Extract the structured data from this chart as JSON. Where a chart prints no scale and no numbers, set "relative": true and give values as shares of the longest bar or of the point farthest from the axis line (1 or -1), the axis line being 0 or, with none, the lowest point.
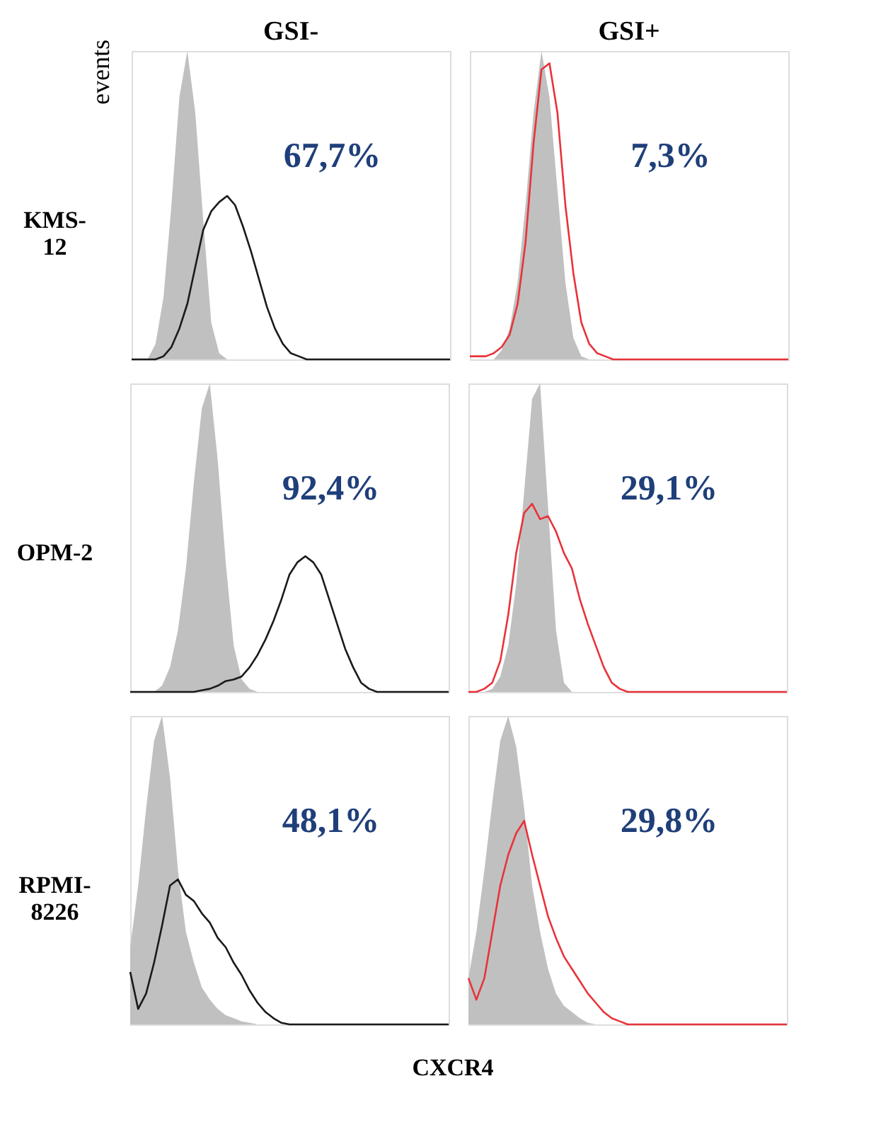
{
  "chart_data": [
    {
      "type": "area",
      "title": "GSI-",
      "ylabel": "KMS-12",
      "relative": true,
      "annotations": [
        "67,7%",
        "events"
      ],
      "categories": [
        null,
        null,
        null,
        null,
        null,
        null,
        null,
        null,
        null,
        null,
        null,
        null,
        null,
        null,
        null,
        null,
        null,
        null,
        null,
        null,
        null,
        null,
        null,
        null,
        null,
        null,
        null,
        null,
        null,
        null,
        null,
        null,
        null,
        null,
        null,
        null,
        null,
        null,
        null,
        null,
        null
      ],
      "series": [
        {
          "color": "#c0c0c0",
          "values": [
            0,
            0,
            0,
            0.05,
            0.2,
            0.5,
            0.85,
            1,
            0.8,
            0.45,
            0.12,
            0.02,
            0,
            0,
            0,
            0,
            0,
            0,
            0,
            0,
            0,
            0,
            0,
            0,
            0,
            0,
            0,
            0,
            0,
            0,
            0,
            0,
            0,
            0,
            0,
            0,
            0,
            0,
            0,
            0,
            0
          ]
        },
        {
          "type": "line",
          "color": "#1a1a1a",
          "values": [
            0,
            0,
            0,
            0,
            0.01,
            0.04,
            0.1,
            0.18,
            0.3,
            0.42,
            0.48,
            0.51,
            0.53,
            0.5,
            0.43,
            0.35,
            0.26,
            0.17,
            0.1,
            0.05,
            0.02,
            0.01,
            0,
            0,
            0,
            0,
            0,
            0,
            0,
            0,
            0,
            0,
            0,
            0,
            0,
            0,
            0,
            0,
            0,
            0,
            0
          ]
        }
      ]
    },
    {
      "type": "area",
      "title": "GSI+",
      "relative": true,
      "annotations": [
        "7,3%"
      ],
      "categories": [
        null,
        null,
        null,
        null,
        null,
        null,
        null,
        null,
        null,
        null,
        null,
        null,
        null,
        null,
        null,
        null,
        null,
        null,
        null,
        null,
        null,
        null,
        null,
        null,
        null,
        null,
        null,
        null,
        null,
        null,
        null,
        null,
        null,
        null,
        null,
        null,
        null,
        null,
        null,
        null,
        null
      ],
      "series": [
        {
          "color": "#c0c0c0",
          "values": [
            0,
            0,
            0,
            0,
            0.03,
            0.1,
            0.25,
            0.5,
            0.8,
            1,
            0.85,
            0.55,
            0.25,
            0.07,
            0.01,
            0,
            0,
            0,
            0,
            0,
            0,
            0,
            0,
            0,
            0,
            0,
            0,
            0,
            0,
            0,
            0,
            0,
            0,
            0,
            0,
            0,
            0,
            0,
            0,
            0,
            0
          ]
        },
        {
          "type": "line",
          "color": "#e8333a",
          "values": [
            0.01,
            0.01,
            0.01,
            0.02,
            0.04,
            0.08,
            0.18,
            0.38,
            0.7,
            0.94,
            0.96,
            0.8,
            0.5,
            0.28,
            0.12,
            0.05,
            0.02,
            0.01,
            0,
            0,
            0,
            0,
            0,
            0,
            0,
            0,
            0,
            0,
            0,
            0,
            0,
            0,
            0,
            0,
            0,
            0,
            0,
            0,
            0,
            0,
            0
          ]
        }
      ]
    },
    {
      "type": "area",
      "ylabel": "OPM-2",
      "relative": true,
      "annotations": [
        "92,4%"
      ],
      "categories": [
        null,
        null,
        null,
        null,
        null,
        null,
        null,
        null,
        null,
        null,
        null,
        null,
        null,
        null,
        null,
        null,
        null,
        null,
        null,
        null,
        null,
        null,
        null,
        null,
        null,
        null,
        null,
        null,
        null,
        null,
        null,
        null,
        null,
        null,
        null,
        null,
        null,
        null,
        null,
        null,
        null
      ],
      "series": [
        {
          "color": "#c0c0c0",
          "values": [
            0,
            0,
            0,
            0,
            0.02,
            0.08,
            0.2,
            0.4,
            0.68,
            0.92,
            1,
            0.75,
            0.42,
            0.15,
            0.04,
            0.01,
            0,
            0,
            0,
            0,
            0,
            0,
            0,
            0,
            0,
            0,
            0,
            0,
            0,
            0,
            0,
            0,
            0,
            0,
            0,
            0,
            0,
            0,
            0,
            0,
            0
          ]
        },
        {
          "type": "line",
          "color": "#1a1a1a",
          "values": [
            0,
            0,
            0,
            0,
            0,
            0,
            0,
            0,
            0,
            0.005,
            0.01,
            0.02,
            0.035,
            0.04,
            0.05,
            0.08,
            0.12,
            0.17,
            0.23,
            0.3,
            0.38,
            0.42,
            0.44,
            0.42,
            0.38,
            0.3,
            0.22,
            0.14,
            0.08,
            0.03,
            0.01,
            0,
            0,
            0,
            0,
            0,
            0,
            0,
            0,
            0,
            0
          ]
        }
      ]
    },
    {
      "type": "area",
      "relative": true,
      "annotations": [
        "29,1%"
      ],
      "categories": [
        null,
        null,
        null,
        null,
        null,
        null,
        null,
        null,
        null,
        null,
        null,
        null,
        null,
        null,
        null,
        null,
        null,
        null,
        null,
        null,
        null,
        null,
        null,
        null,
        null,
        null,
        null,
        null,
        null,
        null,
        null,
        null,
        null,
        null,
        null,
        null,
        null,
        null,
        null,
        null,
        null
      ],
      "series": [
        {
          "color": "#c0c0c0",
          "values": [
            0,
            0,
            0,
            0.01,
            0.05,
            0.15,
            0.35,
            0.65,
            0.95,
            1,
            0.6,
            0.2,
            0.03,
            0,
            0,
            0,
            0,
            0,
            0,
            0,
            0,
            0,
            0,
            0,
            0,
            0,
            0,
            0,
            0,
            0,
            0,
            0,
            0,
            0,
            0,
            0,
            0,
            0,
            0,
            0,
            0
          ]
        },
        {
          "type": "line",
          "color": "#e8333a",
          "values": [
            0,
            0,
            0.01,
            0.03,
            0.1,
            0.25,
            0.45,
            0.58,
            0.61,
            0.56,
            0.57,
            0.52,
            0.45,
            0.4,
            0.3,
            0.22,
            0.15,
            0.08,
            0.03,
            0.01,
            0,
            0,
            0,
            0,
            0,
            0,
            0,
            0,
            0,
            0,
            0,
            0,
            0,
            0,
            0,
            0,
            0,
            0,
            0,
            0,
            0
          ]
        }
      ]
    },
    {
      "type": "area",
      "ylabel": "RPMI-8226",
      "xlabel": "CXCR4",
      "relative": true,
      "annotations": [
        "48,1%"
      ],
      "categories": [
        null,
        null,
        null,
        null,
        null,
        null,
        null,
        null,
        null,
        null,
        null,
        null,
        null,
        null,
        null,
        null,
        null,
        null,
        null,
        null,
        null,
        null,
        null,
        null,
        null,
        null,
        null,
        null,
        null,
        null,
        null,
        null,
        null,
        null,
        null,
        null,
        null,
        null,
        null,
        null,
        null
      ],
      "series": [
        {
          "color": "#c0c0c0",
          "values": [
            0.25,
            0.45,
            0.7,
            0.92,
            1,
            0.8,
            0.5,
            0.3,
            0.2,
            0.12,
            0.08,
            0.05,
            0.03,
            0.02,
            0.01,
            0.005,
            0,
            0,
            0,
            0,
            0,
            0,
            0,
            0,
            0,
            0,
            0,
            0,
            0,
            0,
            0,
            0,
            0,
            0,
            0,
            0,
            0,
            0,
            0,
            0,
            0
          ]
        },
        {
          "type": "line",
          "color": "#1a1a1a",
          "values": [
            0.17,
            0.05,
            0.1,
            0.2,
            0.32,
            0.45,
            0.47,
            0.42,
            0.4,
            0.36,
            0.33,
            0.28,
            0.25,
            0.2,
            0.16,
            0.11,
            0.07,
            0.04,
            0.02,
            0.005,
            0,
            0,
            0,
            0,
            0,
            0,
            0,
            0,
            0,
            0,
            0,
            0,
            0,
            0,
            0,
            0,
            0,
            0,
            0,
            0,
            0
          ]
        }
      ]
    },
    {
      "type": "area",
      "relative": true,
      "annotations": [
        "29,8%"
      ],
      "categories": [
        null,
        null,
        null,
        null,
        null,
        null,
        null,
        null,
        null,
        null,
        null,
        null,
        null,
        null,
        null,
        null,
        null,
        null,
        null,
        null,
        null,
        null,
        null,
        null,
        null,
        null,
        null,
        null,
        null,
        null,
        null,
        null,
        null,
        null,
        null,
        null,
        null,
        null,
        null,
        null,
        null
      ],
      "series": [
        {
          "color": "#c0c0c0",
          "values": [
            0.15,
            0.3,
            0.5,
            0.72,
            0.92,
            1,
            0.9,
            0.7,
            0.45,
            0.3,
            0.18,
            0.1,
            0.06,
            0.04,
            0.02,
            0.005,
            0,
            0,
            0,
            0,
            0,
            0,
            0,
            0,
            0,
            0,
            0,
            0,
            0,
            0,
            0,
            0,
            0,
            0,
            0,
            0,
            0,
            0,
            0,
            0,
            0
          ]
        },
        {
          "type": "line",
          "color": "#e8333a",
          "values": [
            0.15,
            0.08,
            0.15,
            0.3,
            0.45,
            0.55,
            0.62,
            0.66,
            0.55,
            0.45,
            0.35,
            0.28,
            0.22,
            0.18,
            0.14,
            0.1,
            0.07,
            0.04,
            0.02,
            0.01,
            0,
            0,
            0,
            0,
            0,
            0,
            0,
            0,
            0,
            0,
            0,
            0,
            0,
            0,
            0,
            0,
            0,
            0,
            0,
            0,
            0
          ]
        }
      ]
    }
  ]
}
